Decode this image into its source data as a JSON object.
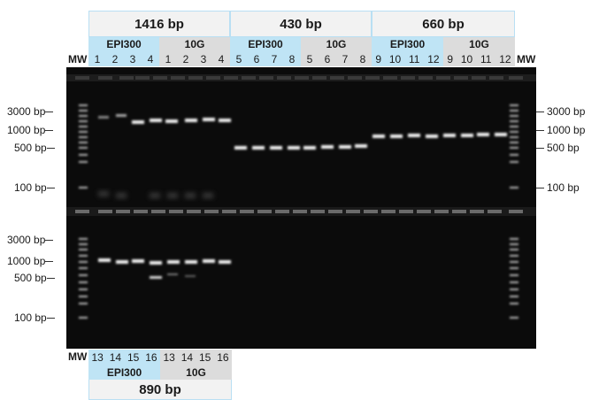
{
  "top_groups": [
    {
      "size": "1416 bp",
      "strains": [
        {
          "name": "EPI300",
          "lanes": [
            "1",
            "2",
            "3",
            "4"
          ]
        },
        {
          "name": "10G",
          "lanes": [
            "1",
            "2",
            "3",
            "4"
          ]
        }
      ]
    },
    {
      "size": "430 bp",
      "strains": [
        {
          "name": "EPI300",
          "lanes": [
            "5",
            "6",
            "7",
            "8"
          ]
        },
        {
          "name": "10G",
          "lanes": [
            "5",
            "6",
            "7",
            "8"
          ]
        }
      ]
    },
    {
      "size": "660 bp",
      "strains": [
        {
          "name": "EPI300",
          "lanes": [
            "9",
            "10",
            "11",
            "12"
          ]
        },
        {
          "name": "10G",
          "lanes": [
            "9",
            "10",
            "11",
            "12"
          ]
        }
      ]
    }
  ],
  "bottom_group": {
    "size": "890 bp",
    "strains": [
      {
        "name": "EPI300",
        "lanes": [
          "13",
          "14",
          "15",
          "16"
        ]
      },
      {
        "name": "10G",
        "lanes": [
          "13",
          "14",
          "15",
          "16"
        ]
      }
    ]
  },
  "mw_label": "MW",
  "left_markers_top": [
    "3000 bp",
    "1000 bp",
    "500 bp",
    "100 bp"
  ],
  "right_markers_top": [
    "3000 bp",
    "1000 bp",
    "500 bp",
    "100 bp"
  ],
  "left_markers_bottom": [
    "3000 bp",
    "1000 bp",
    "500 bp",
    "100 bp"
  ],
  "colors": {
    "epi300_header": "#bfe4f5",
    "tenG_header": "#dcdcdc",
    "size_header": "#f2f2f2",
    "gel": "#0b0b0b"
  }
}
